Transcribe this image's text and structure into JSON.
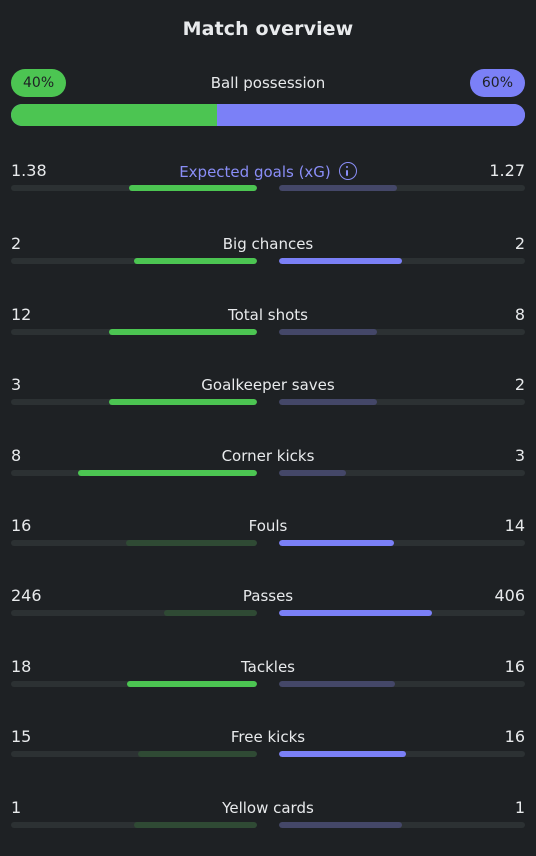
{
  "title": "Match overview",
  "colors": {
    "home": "#4cc552",
    "away": "#7b80f7",
    "background": "#1e2124"
  },
  "possession": {
    "label": "Ball possession",
    "home": "40%",
    "away": "60%",
    "home_fraction": 0.4,
    "away_fraction": 0.6
  },
  "stats": [
    {
      "label": "Expected goals (xG)",
      "home": "1.38",
      "away": "1.27",
      "home_share": 0.52,
      "away_share": 0.48,
      "leader": "home",
      "accent": true,
      "icon": "info-icon"
    },
    {
      "label": "Big chances",
      "home": "2",
      "away": "2",
      "home_share": 0.5,
      "away_share": 0.5,
      "leader": "both"
    },
    {
      "label": "Total shots",
      "home": "12",
      "away": "8",
      "home_share": 0.6,
      "away_share": 0.4,
      "leader": "home"
    },
    {
      "label": "Goalkeeper saves",
      "home": "3",
      "away": "2",
      "home_share": 0.6,
      "away_share": 0.4,
      "leader": "home"
    },
    {
      "label": "Corner kicks",
      "home": "8",
      "away": "3",
      "home_share": 0.727,
      "away_share": 0.273,
      "leader": "home"
    },
    {
      "label": "Fouls",
      "home": "16",
      "away": "14",
      "home_share": 0.533,
      "away_share": 0.467,
      "leader": "away"
    },
    {
      "label": "Passes",
      "home": "246",
      "away": "406",
      "home_share": 0.377,
      "away_share": 0.623,
      "leader": "away"
    },
    {
      "label": "Tackles",
      "home": "18",
      "away": "16",
      "home_share": 0.529,
      "away_share": 0.471,
      "leader": "home"
    },
    {
      "label": "Free kicks",
      "home": "15",
      "away": "16",
      "home_share": 0.484,
      "away_share": 0.516,
      "leader": "away"
    },
    {
      "label": "Yellow cards",
      "home": "1",
      "away": "1",
      "home_share": 0.5,
      "away_share": 0.5,
      "leader": "none"
    }
  ]
}
